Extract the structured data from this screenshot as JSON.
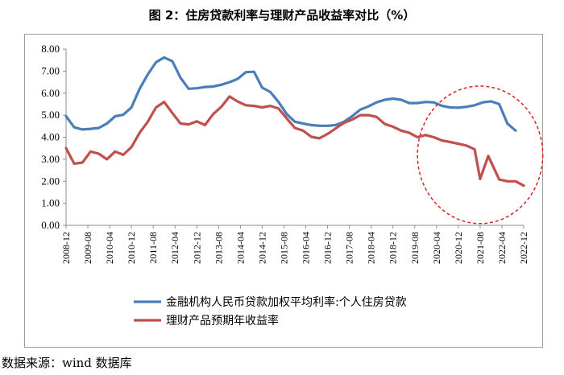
{
  "title": "图 2：住房贷款利率与理财产品收益率对比（%）",
  "source": "数据来源：wind 数据库",
  "chart_data": {
    "type": "line",
    "ylim": [
      0,
      8
    ],
    "yticks": [
      "0.00",
      "1.00",
      "2.00",
      "3.00",
      "4.00",
      "5.00",
      "6.00",
      "7.00",
      "8.00"
    ],
    "xlim": [
      "2008-12",
      "2022-12"
    ],
    "xticks": [
      "2008-12",
      "2009-08",
      "2010-04",
      "2010-12",
      "2011-08",
      "2012-04",
      "2012-12",
      "2013-08",
      "2014-04",
      "2014-12",
      "2015-08",
      "2016-04",
      "2016-12",
      "2017-08",
      "2018-04",
      "2018-12",
      "2019-08",
      "2020-04",
      "2020-12",
      "2021-08",
      "2022-04",
      "2022-12"
    ],
    "grid": false,
    "legend_position": "bottom",
    "series": [
      {
        "name": "金融机构人民币贷款加权平均利率:个人住房贷款",
        "color": "#4a7ebb",
        "points": [
          [
            "2008-12",
            4.95
          ],
          [
            "2009-03",
            4.45
          ],
          [
            "2009-06",
            4.35
          ],
          [
            "2009-09",
            4.38
          ],
          [
            "2009-12",
            4.42
          ],
          [
            "2010-03",
            4.62
          ],
          [
            "2010-06",
            4.95
          ],
          [
            "2010-09",
            5.02
          ],
          [
            "2010-12",
            5.35
          ],
          [
            "2011-03",
            6.2
          ],
          [
            "2011-06",
            6.85
          ],
          [
            "2011-09",
            7.4
          ],
          [
            "2011-12",
            7.62
          ],
          [
            "2012-03",
            7.45
          ],
          [
            "2012-06",
            6.7
          ],
          [
            "2012-09",
            6.2
          ],
          [
            "2012-12",
            6.22
          ],
          [
            "2013-03",
            6.28
          ],
          [
            "2013-06",
            6.3
          ],
          [
            "2013-09",
            6.38
          ],
          [
            "2013-12",
            6.5
          ],
          [
            "2014-03",
            6.65
          ],
          [
            "2014-06",
            6.95
          ],
          [
            "2014-09",
            6.97
          ],
          [
            "2014-12",
            6.25
          ],
          [
            "2015-03",
            6.05
          ],
          [
            "2015-06",
            5.6
          ],
          [
            "2015-09",
            5.05
          ],
          [
            "2015-12",
            4.7
          ],
          [
            "2016-03",
            4.62
          ],
          [
            "2016-06",
            4.55
          ],
          [
            "2016-09",
            4.52
          ],
          [
            "2016-12",
            4.52
          ],
          [
            "2017-03",
            4.55
          ],
          [
            "2017-06",
            4.7
          ],
          [
            "2017-09",
            4.95
          ],
          [
            "2017-12",
            5.25
          ],
          [
            "2018-03",
            5.4
          ],
          [
            "2018-06",
            5.58
          ],
          [
            "2018-09",
            5.7
          ],
          [
            "2018-12",
            5.75
          ],
          [
            "2019-03",
            5.7
          ],
          [
            "2019-06",
            5.55
          ],
          [
            "2019-09",
            5.55
          ],
          [
            "2019-12",
            5.6
          ],
          [
            "2020-03",
            5.58
          ],
          [
            "2020-06",
            5.42
          ],
          [
            "2020-09",
            5.35
          ],
          [
            "2020-12",
            5.34
          ],
          [
            "2021-03",
            5.38
          ],
          [
            "2021-06",
            5.45
          ],
          [
            "2021-09",
            5.58
          ],
          [
            "2021-12",
            5.63
          ],
          [
            "2022-03",
            5.5
          ],
          [
            "2022-06",
            4.62
          ],
          [
            "2022-09",
            4.3
          ]
        ]
      },
      {
        "name": "理财产品预期年收益率",
        "color": "#c0504d",
        "points": [
          [
            "2008-12",
            3.5
          ],
          [
            "2009-03",
            2.8
          ],
          [
            "2009-06",
            2.85
          ],
          [
            "2009-09",
            3.35
          ],
          [
            "2009-12",
            3.25
          ],
          [
            "2010-03",
            3.0
          ],
          [
            "2010-06",
            3.35
          ],
          [
            "2010-09",
            3.2
          ],
          [
            "2010-12",
            3.55
          ],
          [
            "2011-03",
            4.2
          ],
          [
            "2011-06",
            4.7
          ],
          [
            "2011-09",
            5.35
          ],
          [
            "2011-12",
            5.6
          ],
          [
            "2012-03",
            5.1
          ],
          [
            "2012-06",
            4.62
          ],
          [
            "2012-09",
            4.58
          ],
          [
            "2012-12",
            4.72
          ],
          [
            "2013-03",
            4.55
          ],
          [
            "2013-06",
            5.05
          ],
          [
            "2013-09",
            5.38
          ],
          [
            "2013-12",
            5.85
          ],
          [
            "2014-03",
            5.62
          ],
          [
            "2014-06",
            5.45
          ],
          [
            "2014-09",
            5.42
          ],
          [
            "2014-12",
            5.35
          ],
          [
            "2015-03",
            5.42
          ],
          [
            "2015-06",
            5.3
          ],
          [
            "2015-09",
            4.85
          ],
          [
            "2015-12",
            4.42
          ],
          [
            "2016-03",
            4.3
          ],
          [
            "2016-06",
            4.02
          ],
          [
            "2016-09",
            3.95
          ],
          [
            "2016-12",
            4.15
          ],
          [
            "2017-03",
            4.4
          ],
          [
            "2017-06",
            4.65
          ],
          [
            "2017-09",
            4.8
          ],
          [
            "2017-12",
            5.0
          ],
          [
            "2018-03",
            5.0
          ],
          [
            "2018-06",
            4.92
          ],
          [
            "2018-09",
            4.6
          ],
          [
            "2018-12",
            4.48
          ],
          [
            "2019-03",
            4.3
          ],
          [
            "2019-06",
            4.2
          ],
          [
            "2019-09",
            4.0
          ],
          [
            "2019-12",
            4.1
          ],
          [
            "2020-03",
            4.0
          ],
          [
            "2020-06",
            3.85
          ],
          [
            "2020-09",
            3.78
          ],
          [
            "2020-12",
            3.7
          ],
          [
            "2021-03",
            3.62
          ],
          [
            "2021-06",
            3.45
          ],
          [
            "2021-08",
            2.1
          ],
          [
            "2021-11",
            3.15
          ],
          [
            "2022-03",
            2.08
          ],
          [
            "2022-06",
            2.0
          ],
          [
            "2022-09",
            2.0
          ],
          [
            "2022-12",
            1.8
          ]
        ]
      }
    ],
    "annotation": {
      "shape": "ellipse",
      "color": "#e02020",
      "x_center": "2021-08",
      "y_center": 3.2,
      "x_halfwidth_months": 23,
      "y_halfheight": 3.12
    }
  }
}
